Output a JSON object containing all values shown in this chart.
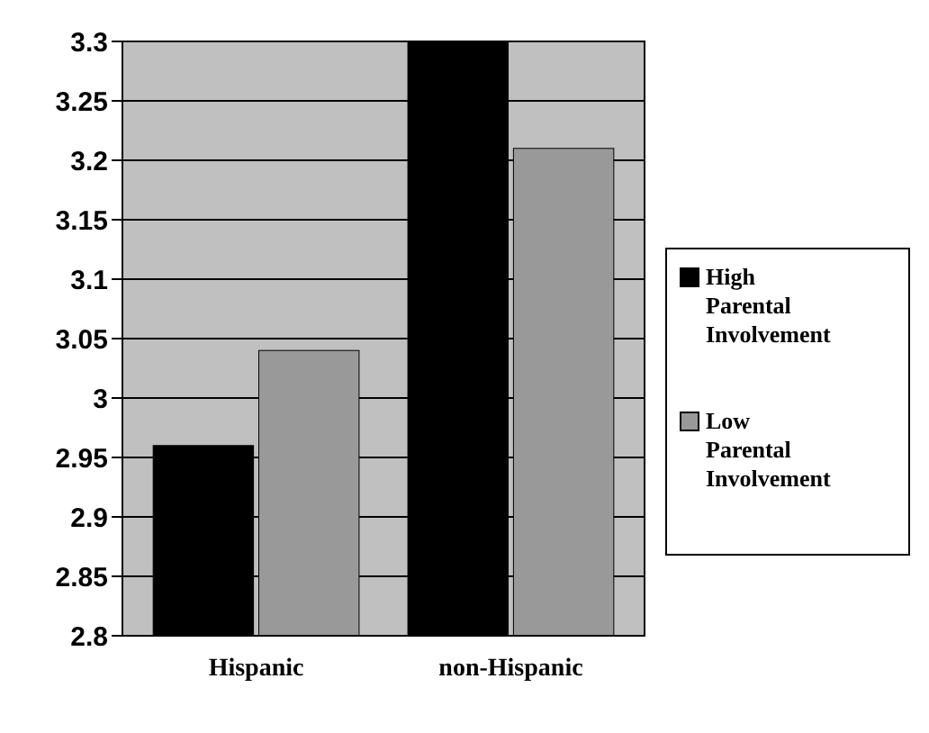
{
  "chart_data": {
    "type": "bar",
    "categories": [
      "Hispanic",
      "non-Hispanic"
    ],
    "series": [
      {
        "name": "High Parental Involvement",
        "color": "#000000",
        "values": [
          2.96,
          3.3
        ]
      },
      {
        "name": "Low Parental Involvement",
        "color": "#999999",
        "values": [
          3.04,
          3.21
        ]
      }
    ],
    "ylim": [
      2.8,
      3.3
    ],
    "yticks": [
      {
        "value": 2.8,
        "label": "2.8"
      },
      {
        "value": 2.85,
        "label": "2.85"
      },
      {
        "value": 2.9,
        "label": "2.9"
      },
      {
        "value": 2.95,
        "label": "2.95"
      },
      {
        "value": 3,
        "label": "3"
      },
      {
        "value": 3.05,
        "label": "3.05"
      },
      {
        "value": 3.1,
        "label": "3.1"
      },
      {
        "value": 3.15,
        "label": "3.15"
      },
      {
        "value": 3.2,
        "label": "3.2"
      },
      {
        "value": 3.25,
        "label": "3.25"
      },
      {
        "value": 3.3,
        "label": "3.3"
      }
    ],
    "grid": "y",
    "legend": "right"
  }
}
